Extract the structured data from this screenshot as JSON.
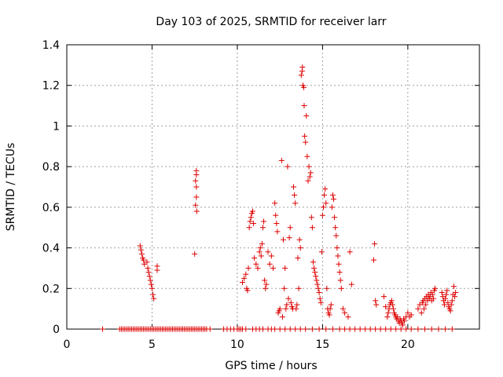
{
  "chart_data": {
    "type": "scatter",
    "title": "Day 103 of 2025, SRMTID for receiver larr",
    "xlabel": "GPS time / hours",
    "ylabel": "SRMTID / TECUs",
    "xlim": [
      0,
      24.2
    ],
    "ylim": [
      0,
      1.4
    ],
    "xticks": [
      0,
      5,
      10,
      15,
      20
    ],
    "yticks": [
      0,
      0.2,
      0.4,
      0.6,
      0.8,
      1,
      1.2,
      1.4
    ],
    "grid": true,
    "marker": "+",
    "color": "#dd0000",
    "series": [
      {
        "name": "SRMTID",
        "x": [
          2.1,
          3.1,
          3.2,
          3.3,
          3.4,
          3.5,
          3.6,
          3.7,
          3.8,
          3.9,
          4.0,
          4.1,
          4.2,
          4.3,
          4.4,
          4.5,
          4.6,
          4.7,
          4.8,
          4.9,
          5.0,
          5.1,
          5.2,
          5.3,
          5.4,
          5.5,
          5.6,
          5.7,
          5.8,
          5.9,
          6.0,
          6.1,
          6.2,
          6.3,
          6.4,
          6.5,
          6.6,
          6.7,
          6.8,
          6.9,
          7.0,
          7.1,
          7.2,
          7.3,
          7.4,
          7.5,
          7.6,
          7.7,
          7.8,
          7.9,
          8.0,
          8.1,
          8.2,
          8.4,
          9.2,
          9.4,
          9.6,
          9.8,
          10.0,
          10.1,
          10.2,
          10.3,
          10.5,
          10.9,
          11.1,
          11.3,
          11.5,
          11.8,
          12.0,
          12.2,
          12.5,
          12.8,
          13.1,
          13.4,
          13.7,
          14.0,
          14.4,
          14.8,
          15.2,
          15.6,
          16.0,
          16.3,
          16.6,
          16.9,
          17.2,
          17.5,
          17.8,
          18.1,
          18.4,
          18.7,
          19.0,
          19.3,
          19.6,
          19.9,
          20.2,
          20.6,
          21.0,
          21.4,
          21.8,
          22.2,
          22.6,
          4.3,
          4.35,
          4.4,
          4.45,
          4.5,
          4.55,
          4.7,
          4.75,
          4.8,
          4.85,
          4.9,
          4.95,
          5.0,
          5.05,
          5.1,
          5.3,
          5.3,
          7.5,
          7.55,
          7.55,
          7.6,
          7.6,
          7.6,
          7.6,
          7.62,
          10.3,
          10.4,
          10.5,
          10.55,
          10.6,
          10.65,
          10.7,
          10.75,
          10.8,
          10.85,
          10.9,
          10.95,
          11.0,
          11.1,
          11.2,
          11.3,
          11.35,
          11.4,
          11.45,
          11.5,
          11.55,
          11.6,
          11.65,
          11.7,
          11.8,
          11.9,
          12.0,
          12.1,
          12.2,
          12.25,
          12.3,
          12.35,
          12.4,
          12.45,
          12.5,
          12.6,
          12.65,
          12.7,
          12.75,
          12.8,
          12.85,
          12.9,
          12.95,
          13.0,
          13.05,
          13.1,
          13.15,
          13.2,
          13.25,
          13.3,
          13.35,
          13.4,
          13.45,
          13.5,
          13.55,
          13.6,
          13.65,
          13.7,
          13.75,
          13.8,
          13.82,
          13.85,
          13.9,
          13.92,
          13.95,
          14.0,
          14.05,
          14.1,
          14.15,
          14.2,
          14.25,
          14.3,
          14.35,
          14.4,
          14.45,
          14.5,
          14.55,
          14.6,
          14.65,
          14.7,
          14.75,
          14.8,
          14.85,
          14.9,
          14.95,
          15.0,
          15.05,
          15.1,
          15.15,
          15.2,
          15.25,
          15.3,
          15.35,
          15.4,
          15.45,
          15.5,
          15.55,
          15.6,
          15.65,
          15.7,
          15.75,
          15.8,
          15.85,
          15.9,
          15.95,
          16.0,
          16.05,
          16.1,
          16.2,
          16.3,
          16.5,
          16.6,
          16.7,
          18.0,
          18.05,
          18.1,
          18.15,
          18.6,
          18.7,
          18.8,
          18.85,
          18.9,
          18.95,
          19.0,
          19.05,
          19.1,
          19.15,
          19.2,
          19.25,
          19.3,
          19.35,
          19.4,
          19.45,
          19.5,
          19.55,
          19.6,
          19.65,
          19.7,
          19.75,
          19.8,
          19.9,
          20.0,
          20.1,
          20.2,
          20.6,
          20.7,
          20.8,
          20.85,
          20.9,
          20.95,
          21.0,
          21.05,
          21.1,
          21.15,
          21.2,
          21.25,
          21.3,
          21.35,
          21.4,
          21.45,
          21.5,
          21.55,
          21.6,
          22.0,
          22.05,
          22.1,
          22.15,
          22.2,
          22.25,
          22.3,
          22.35,
          22.4,
          22.45,
          22.5,
          22.55,
          22.6,
          22.65,
          22.7,
          22.75,
          22.8
        ],
        "y": [
          0,
          0,
          0,
          0,
          0,
          0,
          0,
          0,
          0,
          0,
          0,
          0,
          0,
          0,
          0,
          0,
          0,
          0,
          0,
          0,
          0,
          0,
          0,
          0,
          0,
          0,
          0,
          0,
          0,
          0,
          0,
          0,
          0,
          0,
          0,
          0,
          0,
          0,
          0,
          0,
          0,
          0,
          0,
          0,
          0,
          0,
          0,
          0,
          0,
          0,
          0,
          0,
          0,
          0,
          0,
          0,
          0,
          0,
          0,
          0,
          0,
          0,
          0,
          0,
          0,
          0,
          0,
          0,
          0,
          0,
          0,
          0,
          0,
          0,
          0,
          0,
          0,
          0,
          0,
          0,
          0,
          0,
          0,
          0,
          0,
          0,
          0,
          0,
          0,
          0,
          0,
          0,
          0,
          0,
          0,
          0,
          0,
          0,
          0,
          0,
          0,
          0.41,
          0.39,
          0.37,
          0.35,
          0.34,
          0.32,
          0.33,
          0.3,
          0.28,
          0.26,
          0.24,
          0.22,
          0.2,
          0.17,
          0.15,
          0.31,
          0.29,
          0.37,
          0.61,
          0.73,
          0.78,
          0.76,
          0.7,
          0.65,
          0.58,
          0.23,
          0.25,
          0.27,
          0.2,
          0.19,
          0.3,
          0.5,
          0.53,
          0.55,
          0.57,
          0.58,
          0.52,
          0.35,
          0.32,
          0.3,
          0.38,
          0.4,
          0.36,
          0.42,
          0.5,
          0.53,
          0.24,
          0.2,
          0.22,
          0.38,
          0.32,
          0.36,
          0.3,
          0.62,
          0.56,
          0.52,
          0.48,
          0.08,
          0.09,
          0.1,
          0.83,
          0.06,
          0.44,
          0.2,
          0.3,
          0.1,
          0.12,
          0.8,
          0.15,
          0.45,
          0.5,
          0.13,
          0.11,
          0.1,
          0.7,
          0.66,
          0.62,
          0.1,
          0.12,
          0.35,
          0.2,
          0.44,
          0.4,
          1.25,
          1.27,
          1.29,
          1.2,
          1.19,
          1.1,
          0.95,
          0.92,
          1.05,
          0.85,
          0.73,
          0.8,
          0.75,
          0.77,
          0.55,
          0.5,
          0.33,
          0.3,
          0.28,
          0.26,
          0.24,
          0.22,
          0.2,
          0.18,
          0.15,
          0.13,
          0.38,
          0.56,
          0.6,
          0.66,
          0.69,
          0.62,
          0.2,
          0.1,
          0.08,
          0.07,
          0.1,
          0.12,
          0.6,
          0.66,
          0.64,
          0.55,
          0.5,
          0.46,
          0.4,
          0.36,
          0.32,
          0.28,
          0.24,
          0.2,
          0.1,
          0.08,
          0.06,
          0.38,
          0.22,
          0.34,
          0.42,
          0.14,
          0.12,
          0.16,
          0.11,
          0.06,
          0.08,
          0.1,
          0.12,
          0.13,
          0.14,
          0.12,
          0.1,
          0.08,
          0.07,
          0.06,
          0.05,
          0.06,
          0.04,
          0.03,
          0.05,
          0.04,
          0.03,
          0.02,
          0.05,
          0.04,
          0.06,
          0.08,
          0.06,
          0.07,
          0.1,
          0.12,
          0.08,
          0.13,
          0.14,
          0.1,
          0.15,
          0.12,
          0.16,
          0.14,
          0.17,
          0.15,
          0.16,
          0.18,
          0.14,
          0.17,
          0.15,
          0.19,
          0.2,
          0.18,
          0.16,
          0.14,
          0.12,
          0.15,
          0.17,
          0.19,
          0.13,
          0.11,
          0.1,
          0.09,
          0.12,
          0.14,
          0.17,
          0.21,
          0.16,
          0.18
        ]
      }
    ]
  }
}
